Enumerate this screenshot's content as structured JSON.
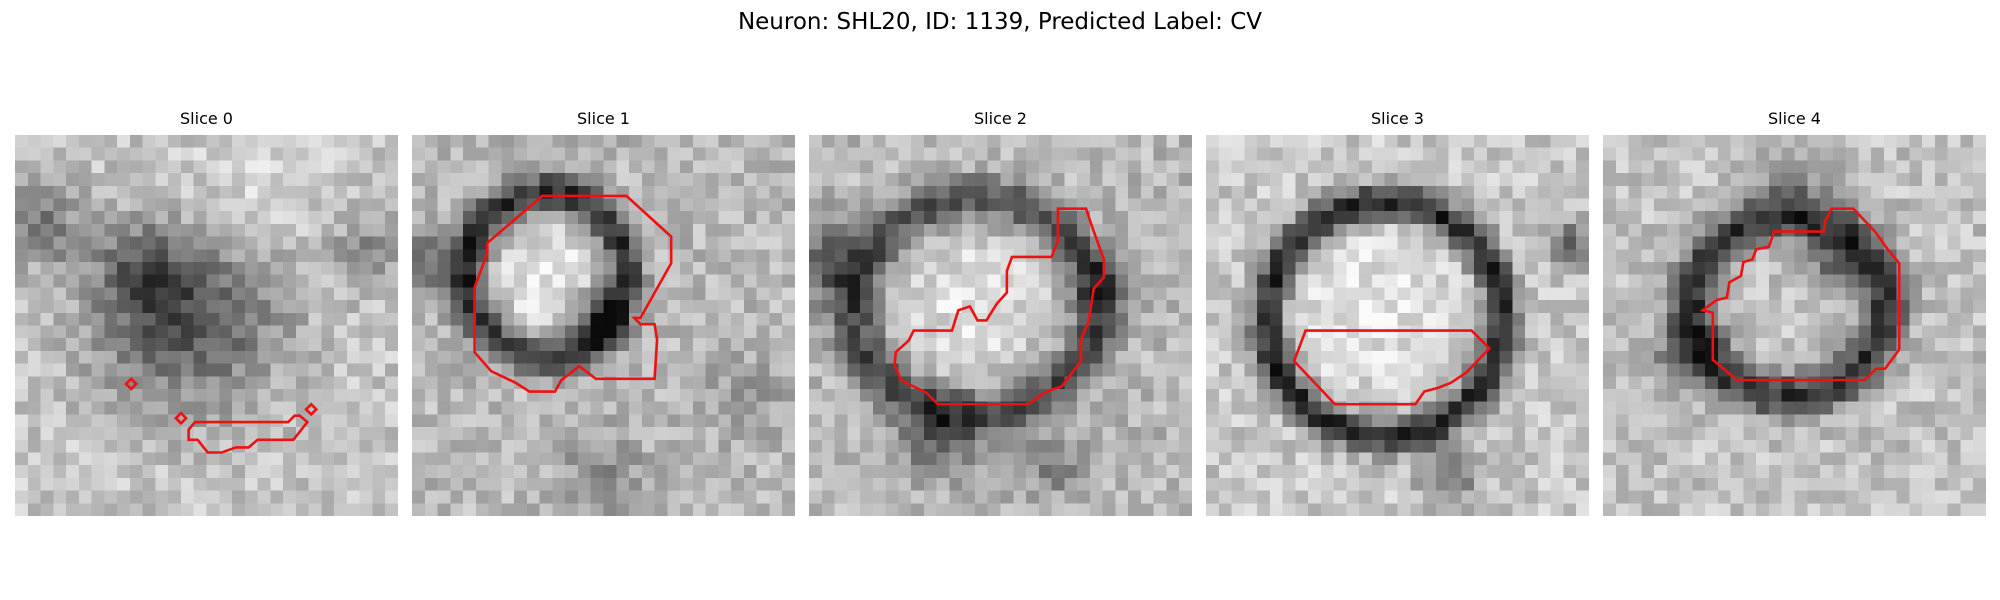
{
  "figure": {
    "title": "Neuron: SHL20, ID: 1139, Predicted Label: CV"
  },
  "panels": [
    {
      "title": "Slice 0"
    },
    {
      "title": "Slice 1"
    },
    {
      "title": "Slice 2"
    },
    {
      "title": "Slice 3"
    },
    {
      "title": "Slice 4"
    }
  ],
  "colors": {
    "contour": "#ee1111",
    "colormap": "grayscale"
  }
}
